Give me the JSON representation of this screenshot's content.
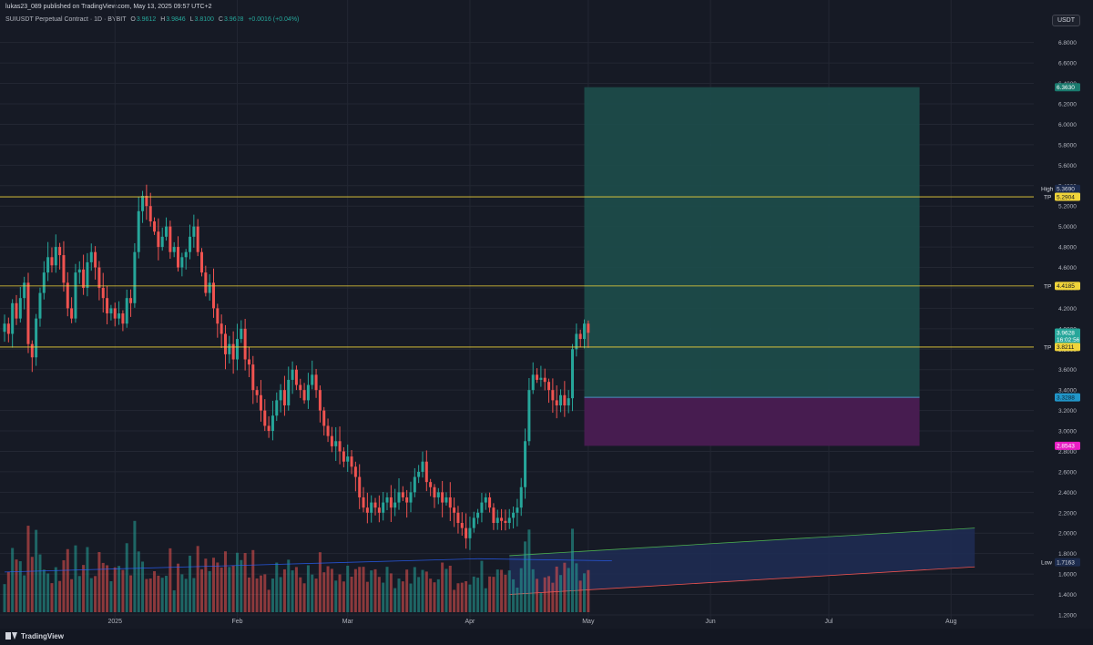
{
  "header": {
    "published": "lukas23_089 published on TradingView.com, May 13, 2025 09:57 UTC+2",
    "symbol": "SUIUSDT Perpetual Contract · 1D · BYBIT",
    "ohlc": {
      "o_label": "O",
      "o": "3.9612",
      "h_label": "H",
      "h": "3.9846",
      "l_label": "L",
      "l": "3.8100",
      "c_label": "C",
      "c": "3.9628",
      "change": "+0.0016 (+0.04%)"
    },
    "currency": "USDT"
  },
  "footer": {
    "brand": "TradingView"
  },
  "colors": {
    "background": "#161a25",
    "up": "#26a69a",
    "down": "#ef5350",
    "target_zone": "#1d4e4b",
    "stop_zone": "#4a1c52",
    "level_line": "#f0d43a",
    "channel": "#1f2d55"
  },
  "chart_data": {
    "type": "candlestick",
    "title": "SUIUSDT Perpetual Contract · 1D · BYBIT",
    "ylim": [
      1.1,
      6.95
    ],
    "y_ticks": [
      "6.8000",
      "6.6000",
      "6.4000",
      "6.2000",
      "6.0000",
      "5.8000",
      "5.6000",
      "5.4000",
      "5.2000",
      "5.0000",
      "4.8000",
      "4.6000",
      "4.4000",
      "4.2000",
      "4.0000",
      "3.8000",
      "3.6000",
      "3.4000",
      "3.2000",
      "3.0000",
      "2.8000",
      "2.6000",
      "2.4000",
      "2.2000",
      "2.0000",
      "1.8000",
      "1.6000",
      "1.4000",
      "1.2000"
    ],
    "x_ticks": [
      {
        "label": "2025",
        "day": 28
      },
      {
        "label": "Feb",
        "day": 59
      },
      {
        "label": "Mar",
        "day": 87
      },
      {
        "label": "Apr",
        "day": 118
      },
      {
        "label": "May",
        "day": 148
      },
      {
        "label": "Jun",
        "day": 179
      },
      {
        "label": "Jul",
        "day": 209
      },
      {
        "label": "Aug",
        "day": 240
      }
    ],
    "close_prices": [
      4.05,
      3.95,
      4.25,
      4.1,
      4.3,
      4.45,
      3.85,
      3.72,
      4.1,
      4.35,
      4.55,
      4.7,
      4.62,
      4.8,
      4.72,
      4.45,
      4.2,
      4.1,
      4.55,
      4.58,
      4.4,
      4.65,
      4.75,
      4.6,
      4.4,
      4.3,
      4.15,
      4.2,
      4.1,
      4.15,
      4.05,
      4.3,
      4.25,
      4.75,
      5.15,
      5.3,
      5.2,
      5.05,
      4.95,
      4.8,
      4.9,
      5.0,
      4.75,
      4.8,
      4.6,
      4.7,
      4.75,
      4.9,
      5.0,
      4.75,
      4.55,
      4.35,
      4.45,
      4.2,
      4.05,
      3.95,
      3.75,
      3.85,
      3.7,
      3.9,
      4.0,
      3.7,
      3.65,
      3.4,
      3.35,
      3.2,
      3.05,
      3.0,
      3.15,
      3.3,
      3.4,
      3.25,
      3.5,
      3.6,
      3.45,
      3.4,
      3.3,
      3.45,
      3.55,
      3.4,
      3.2,
      3.05,
      2.95,
      2.85,
      2.9,
      2.8,
      2.7,
      2.75,
      2.65,
      2.55,
      2.35,
      2.25,
      2.2,
      2.3,
      2.25,
      2.2,
      2.3,
      2.35,
      2.25,
      2.3,
      2.4,
      2.35,
      2.3,
      2.4,
      2.55,
      2.6,
      2.7,
      2.5,
      2.45,
      2.35,
      2.4,
      2.3,
      2.35,
      2.25,
      2.2,
      2.1,
      2.05,
      1.95,
      2.05,
      2.15,
      2.2,
      2.3,
      2.35,
      2.25,
      2.1,
      2.15,
      2.12,
      2.1,
      2.15,
      2.2,
      2.25,
      2.45,
      2.9,
      3.4,
      3.55,
      3.5,
      3.52,
      3.48,
      3.4,
      3.3,
      3.25,
      3.35,
      3.25,
      3.32,
      3.8,
      3.95,
      3.9,
      4.05,
      3.96
    ],
    "volume_trend": [
      {
        "day": 120,
        "value": 1.75
      },
      {
        "day": 154,
        "value": 1.73
      }
    ],
    "levels": [
      {
        "label": "TP",
        "value": "5.2904"
      },
      {
        "label": "TP",
        "value": "4.4185"
      },
      {
        "label": "TP",
        "value": "3.8211"
      }
    ],
    "price_labels": {
      "high_label": "High",
      "high": "5.3690",
      "target": "6.3630",
      "last": "3.9628",
      "countdown": "16:02:56",
      "entry": "3.3288",
      "stop": "2.8543",
      "low_label": "Low",
      "low": "1.7163"
    },
    "position": {
      "entry": 3.3288,
      "target": 6.363,
      "stop": 2.8543,
      "start_day": 147,
      "end_day": 232
    },
    "channel": {
      "upper": [
        [
          128,
          1.78
        ],
        [
          246,
          2.05
        ]
      ],
      "lower": [
        [
          128,
          1.4
        ],
        [
          246,
          1.67
        ]
      ]
    }
  }
}
